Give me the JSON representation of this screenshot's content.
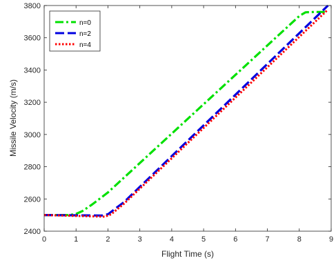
{
  "chart_data": {
    "type": "line",
    "title": "",
    "xlabel": "Flight Time (s)",
    "ylabel": "Missile Velocity (m/s)",
    "xlim": [
      0,
      9
    ],
    "ylim": [
      2400,
      3800
    ],
    "x_ticks": [
      0,
      1,
      2,
      3,
      4,
      5,
      6,
      7,
      8,
      9
    ],
    "y_ticks": [
      2400,
      2600,
      2800,
      3000,
      3200,
      3400,
      3600,
      3800
    ],
    "grid": false,
    "legend_position": "top-left",
    "series": [
      {
        "name": "n=0",
        "color": "#00e000",
        "style": "dash-dot",
        "points": [
          [
            0,
            2500
          ],
          [
            0.8,
            2500
          ],
          [
            1.0,
            2507
          ],
          [
            1.2,
            2525
          ],
          [
            1.5,
            2565
          ],
          [
            2.0,
            2640
          ],
          [
            8.0,
            3735
          ],
          [
            8.2,
            3758
          ],
          [
            8.5,
            3760
          ],
          [
            8.8,
            3760
          ]
        ]
      },
      {
        "name": "n=2",
        "color": "#0000e0",
        "style": "dashed",
        "points": [
          [
            0,
            2500
          ],
          [
            1.8,
            2497
          ],
          [
            2.0,
            2505
          ],
          [
            2.5,
            2580
          ],
          [
            8.9,
            3800
          ]
        ]
      },
      {
        "name": "n=4",
        "color": "#ff0000",
        "style": "dotted",
        "points": [
          [
            0,
            2500
          ],
          [
            1.9,
            2490
          ],
          [
            2.1,
            2505
          ],
          [
            2.5,
            2570
          ],
          [
            8.9,
            3775
          ]
        ]
      }
    ]
  }
}
